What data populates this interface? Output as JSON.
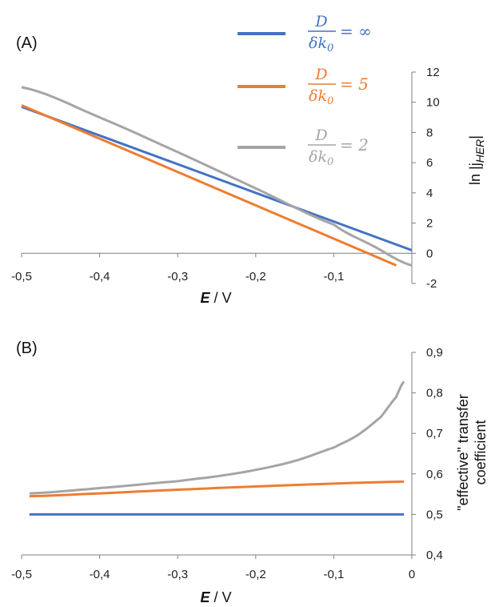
{
  "chart_data": [
    {
      "type": "line",
      "panel_label": "(A)",
      "xlabel_var": "E",
      "xlabel_unit": " / V",
      "ylabel_prefix": "ln |j",
      "ylabel_sub": "HER",
      "ylabel_suffix": "|",
      "xlim": [
        -0.5,
        0
      ],
      "ylim": [
        -2,
        12
      ],
      "xticks": [
        "-0,5",
        "-0,4",
        "-0,3",
        "-0,2",
        "-0,1"
      ],
      "yticks": [
        "12",
        "10",
        "8",
        "6",
        "4",
        "2",
        "0",
        "-2"
      ],
      "legend_placement": "top-right",
      "series": [
        {
          "name": "D/δk0 = ∞",
          "color": "#4472C4",
          "x": [
            -0.5,
            0.0
          ],
          "y": [
            9.7,
            0.2
          ]
        },
        {
          "name": "D/δk0 = 5",
          "color": "#ED7D31",
          "x": [
            -0.5,
            -0.02
          ],
          "y": [
            9.8,
            -0.8
          ]
        },
        {
          "name": "D/δk0 = 2",
          "color": "#A5A5A5",
          "x": [
            -0.5,
            -0.4,
            -0.3,
            -0.2,
            -0.1,
            -0.05,
            0.0
          ],
          "y": [
            11.0,
            9.0,
            6.7,
            4.3,
            1.9,
            0.5,
            -0.8
          ]
        }
      ]
    },
    {
      "type": "line",
      "panel_label": "(B)",
      "xlabel_var": "E",
      "xlabel_unit": " / V",
      "ylabel_lines": [
        "\"effective\" transfer",
        "coefficient"
      ],
      "xlim": [
        -0.5,
        0
      ],
      "ylim": [
        0.4,
        0.9
      ],
      "xticks": [
        "-0,5",
        "-0,4",
        "-0,3",
        "-0,2",
        "-0,1",
        "0"
      ],
      "yticks": [
        "0,9",
        "0,8",
        "0,7",
        "0,6",
        "0,5",
        "0,4"
      ],
      "series": [
        {
          "name": "D/δk0 = ∞",
          "color": "#4472C4",
          "x": [
            -0.49,
            -0.01
          ],
          "y": [
            0.5,
            0.5
          ]
        },
        {
          "name": "D/δk0 = 5",
          "color": "#ED7D31",
          "x": [
            -0.49,
            -0.4,
            -0.3,
            -0.2,
            -0.1,
            -0.01
          ],
          "y": [
            0.545,
            0.552,
            0.561,
            0.569,
            0.576,
            0.581
          ]
        },
        {
          "name": "D/δk0 = 2",
          "color": "#A5A5A5",
          "x": [
            -0.49,
            -0.4,
            -0.3,
            -0.25,
            -0.2,
            -0.15,
            -0.1,
            -0.07,
            -0.04,
            -0.02,
            -0.01
          ],
          "y": [
            0.552,
            0.565,
            0.582,
            0.594,
            0.61,
            0.632,
            0.665,
            0.695,
            0.74,
            0.79,
            0.828
          ]
        }
      ]
    }
  ],
  "legend": [
    {
      "num": "D",
      "den": "δk",
      "sub": "0",
      "eq": "= ∞",
      "color": "#4472C4"
    },
    {
      "num": "D",
      "den": "δk",
      "sub": "0",
      "eq": "= 5",
      "color": "#ED7D31"
    },
    {
      "num": "D",
      "den": "δk",
      "sub": "0",
      "eq": "= 2",
      "color": "#A5A5A5"
    }
  ]
}
